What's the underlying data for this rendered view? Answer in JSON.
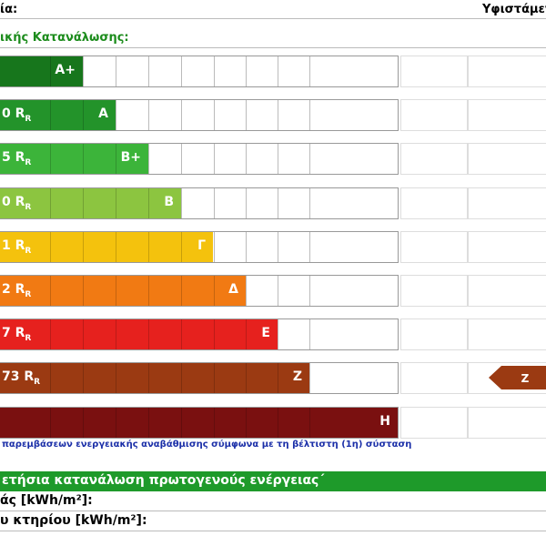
{
  "header": {
    "left": "ία:",
    "right": "Υφιστάμεν"
  },
  "section_label": "ικής Κατανάλωσης:",
  "scale": [
    {
      "class": "A+",
      "color": "#17761c"
    },
    {
      "range": "0 R",
      "sub": "R",
      "class": "A",
      "color": "#23932a"
    },
    {
      "range": "5 R",
      "sub": "R",
      "class": "B+",
      "color": "#3cb43a"
    },
    {
      "range": "0 R",
      "sub": "R",
      "class": "B",
      "color": "#8cc540"
    },
    {
      "range": "1 R",
      "sub": "R",
      "class": "Γ",
      "color": "#f4c20d"
    },
    {
      "range": "2 R",
      "sub": "R",
      "class": "Δ",
      "color": "#f17a13"
    },
    {
      "range": "7 R",
      "sub": "R",
      "class": "E",
      "color": "#e6211e"
    },
    {
      "range": "73 R",
      "sub": "R",
      "class": "Z",
      "color": "#9b3a12"
    },
    {
      "class": "H",
      "color": "#7a1010"
    }
  ],
  "rating_arrow": {
    "label": "Z",
    "color": "#9b3a12"
  },
  "note": "παρεμβάσεων ενεργειακής αναβάθμισης σύμφωνα με τη βέλτιστη (1η) σύσταση",
  "band_title": "ετήσια κατανάλωση πρωτογενούς ενέργειας΄",
  "fields": [
    "άς [kWh/m²]:",
    "υ κτηρίου [kWh/m²]:"
  ]
}
